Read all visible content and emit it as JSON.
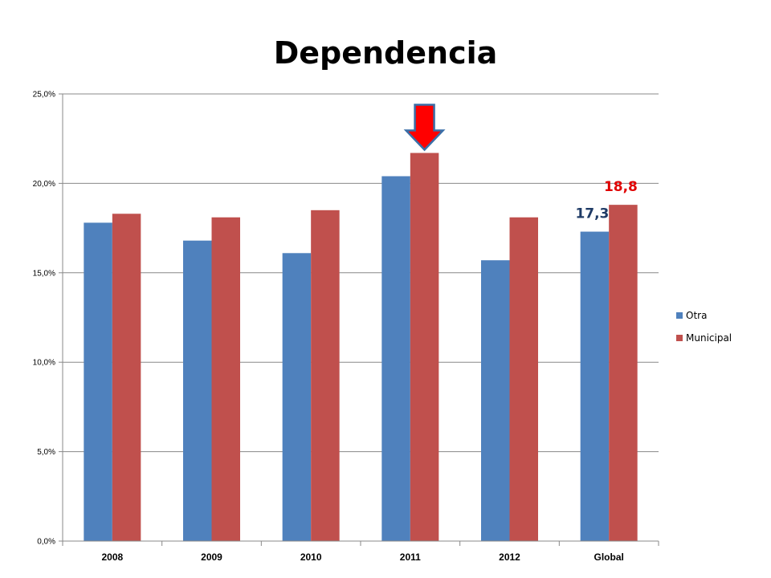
{
  "colors": {
    "otra": "#4F81BD",
    "municipal": "#C0504D",
    "otra_label": "#1F3B66",
    "municipal_label": "#E00000",
    "arrow_fill": "#FF0000",
    "arrow_stroke": "#3A6FA8",
    "grid": "#888888"
  },
  "chart_data": {
    "type": "bar",
    "title": "Dependencia",
    "xlabel": "",
    "ylabel": "",
    "ylim": [
      0,
      25
    ],
    "yticks": [
      0,
      5,
      10,
      15,
      20,
      25
    ],
    "ytick_labels": [
      "0,0%",
      "5,0%",
      "10,0%",
      "15,0%",
      "20,0%",
      "25,0%"
    ],
    "categories": [
      "2008",
      "2009",
      "2010",
      "2011",
      "2012",
      "Global"
    ],
    "series": [
      {
        "name": "Otra",
        "values": [
          17.8,
          16.8,
          16.1,
          20.4,
          15.7,
          17.3
        ]
      },
      {
        "name": "Municipal",
        "values": [
          18.3,
          18.1,
          18.5,
          21.7,
          18.1,
          18.8
        ]
      }
    ],
    "data_labels": [
      {
        "series": "Otra",
        "category": "Global",
        "text": "17,3"
      },
      {
        "series": "Municipal",
        "category": "Global",
        "text": "18,8"
      }
    ],
    "annotation": {
      "type": "down-arrow",
      "category": "2011",
      "series": "Municipal"
    },
    "grid": true,
    "legend_position": "right"
  }
}
